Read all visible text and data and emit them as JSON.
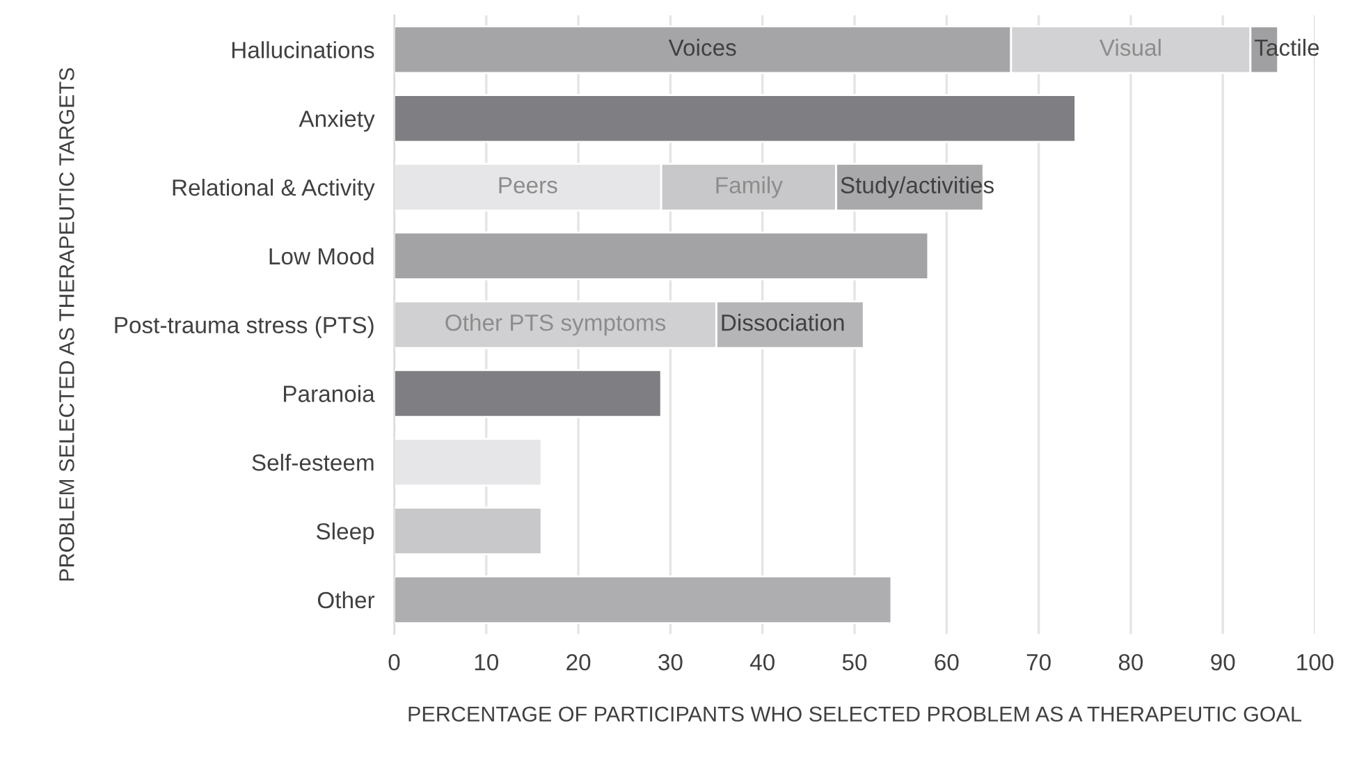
{
  "chart_data": {
    "type": "bar",
    "orientation": "horizontal",
    "stacked": true,
    "xlabel": "PERCENTAGE OF PARTICIPANTS WHO SELECTED PROBLEM AS A THERAPEUTIC GOAL",
    "ylabel": "PROBLEM SELECTED AS THERAPEUTIC TARGETS",
    "categories": [
      "Hallucinations",
      "Anxiety",
      "Relational & Activity",
      "Low Mood",
      "Post-trauma stress (PTS)",
      "Paranoia",
      "Self-esteem",
      "Sleep",
      "Other"
    ],
    "series": [
      {
        "name": "Voices",
        "color": "#a5a5a8",
        "values": [
          67,
          null,
          null,
          null,
          null,
          null,
          null,
          null,
          null
        ]
      },
      {
        "name": "Visual",
        "color": "#d2d2d4",
        "values": [
          26,
          null,
          null,
          null,
          null,
          null,
          null,
          null,
          null
        ]
      },
      {
        "name": "Tactile",
        "color": "#a0a0a3",
        "values": [
          3,
          null,
          null,
          null,
          null,
          null,
          null,
          null,
          null
        ]
      },
      {
        "name": "Peers",
        "color": "#e6e6e8",
        "values": [
          null,
          null,
          29,
          null,
          null,
          null,
          null,
          null,
          null
        ]
      },
      {
        "name": "Family",
        "color": "#c8c8ca",
        "values": [
          null,
          null,
          19,
          null,
          null,
          null,
          null,
          null,
          null
        ]
      },
      {
        "name": "Study/activities",
        "color": "#a9a9ac",
        "values": [
          null,
          null,
          16,
          null,
          null,
          null,
          null,
          null,
          null
        ]
      },
      {
        "name": "Other PTS symptoms",
        "color": "#d0d0d2",
        "values": [
          null,
          null,
          null,
          null,
          35,
          null,
          null,
          null,
          null
        ]
      },
      {
        "name": "Dissociation",
        "color": "#b5b5b8",
        "values": [
          null,
          null,
          null,
          null,
          16,
          null,
          null,
          null,
          null
        ]
      },
      {
        "colors": [
          "#a5a5a8",
          "#7f7f83",
          "#e6e6e8",
          "#a3a3a6",
          "#d0d0d2",
          "#7f7f83",
          "#e6e6e8",
          "#c8c8ca",
          "#aeaeb1"
        ],
        "values": [
          null,
          74,
          null,
          58,
          null,
          29,
          16,
          16,
          54
        ]
      }
    ],
    "xlim": [
      0,
      100
    ],
    "xticks": [
      0,
      10,
      20,
      30,
      40,
      50,
      60,
      70,
      80,
      90,
      100
    ],
    "grid": "x",
    "legend": false
  }
}
